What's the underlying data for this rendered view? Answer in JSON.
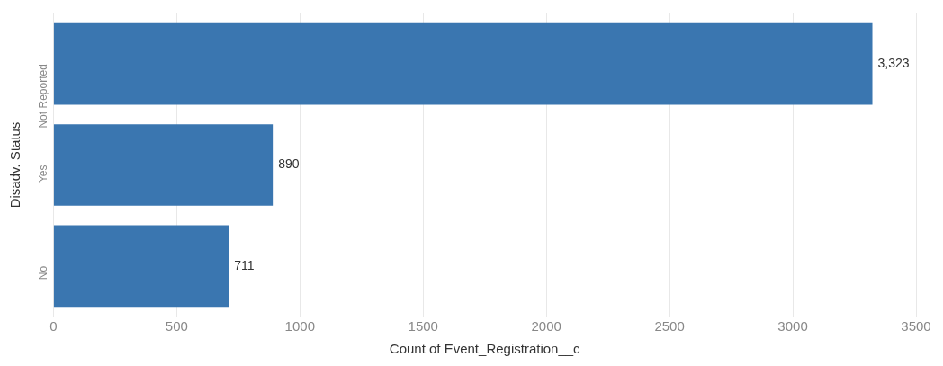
{
  "chart_data": {
    "type": "bar",
    "orientation": "horizontal",
    "xlabel": "Count of Event_Registration__c",
    "ylabel": "Disadv. Status",
    "categories": [
      "Not Reported",
      "Yes",
      "No"
    ],
    "values": [
      3323,
      890,
      711
    ],
    "color": "#3a76b0",
    "value_labels": [
      "3,323",
      "890",
      "711"
    ],
    "xlim": [
      0,
      3500
    ],
    "xticks": [
      0,
      500,
      1000,
      1500,
      2000,
      2500,
      3000,
      3500
    ],
    "grid": "x"
  }
}
